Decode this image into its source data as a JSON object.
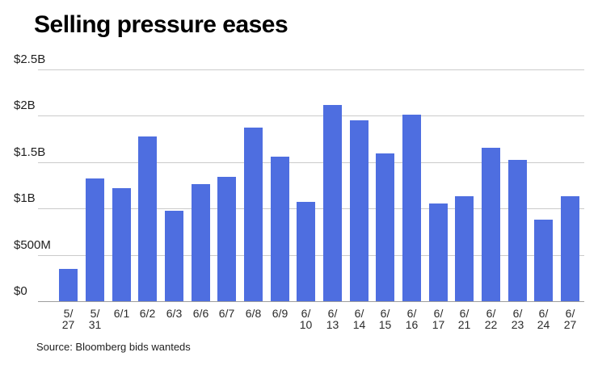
{
  "title": "Selling pressure eases",
  "source": "Source: Bloomberg bids wanteds",
  "colors": {
    "bar": "#4E6EE0",
    "gridline": "#CBCBCB",
    "baseline": "#9E9E9E",
    "title_text": "#000000",
    "axis_text": "#1F1F1F",
    "background": "#FFFFFF"
  },
  "chart_data": {
    "type": "bar",
    "title": "Selling pressure eases",
    "categories": [
      "5/27",
      "5/31",
      "6/1",
      "6/2",
      "6/3",
      "6/6",
      "6/7",
      "6/8",
      "6/9",
      "6/10",
      "6/13",
      "6/14",
      "6/15",
      "6/16",
      "6/17",
      "6/21",
      "6/22",
      "6/23",
      "6/24",
      "6/27"
    ],
    "values": [
      0.35,
      1.32,
      1.22,
      1.77,
      0.97,
      1.26,
      1.34,
      1.87,
      1.56,
      1.07,
      2.11,
      1.95,
      1.59,
      2.01,
      1.05,
      1.13,
      1.65,
      1.52,
      0.88,
      1.13
    ],
    "unit": "USD billions",
    "xlabel": "",
    "ylabel": "",
    "ylim": [
      0,
      2.5
    ],
    "ytick_interval": 0.5,
    "ytick_labels": [
      "$0",
      "$500M",
      "$1B",
      "$1.5B",
      "$2B",
      "$2.5B"
    ],
    "grid": true,
    "legend": false,
    "source": "Source: Bloomberg bids wanteds"
  }
}
